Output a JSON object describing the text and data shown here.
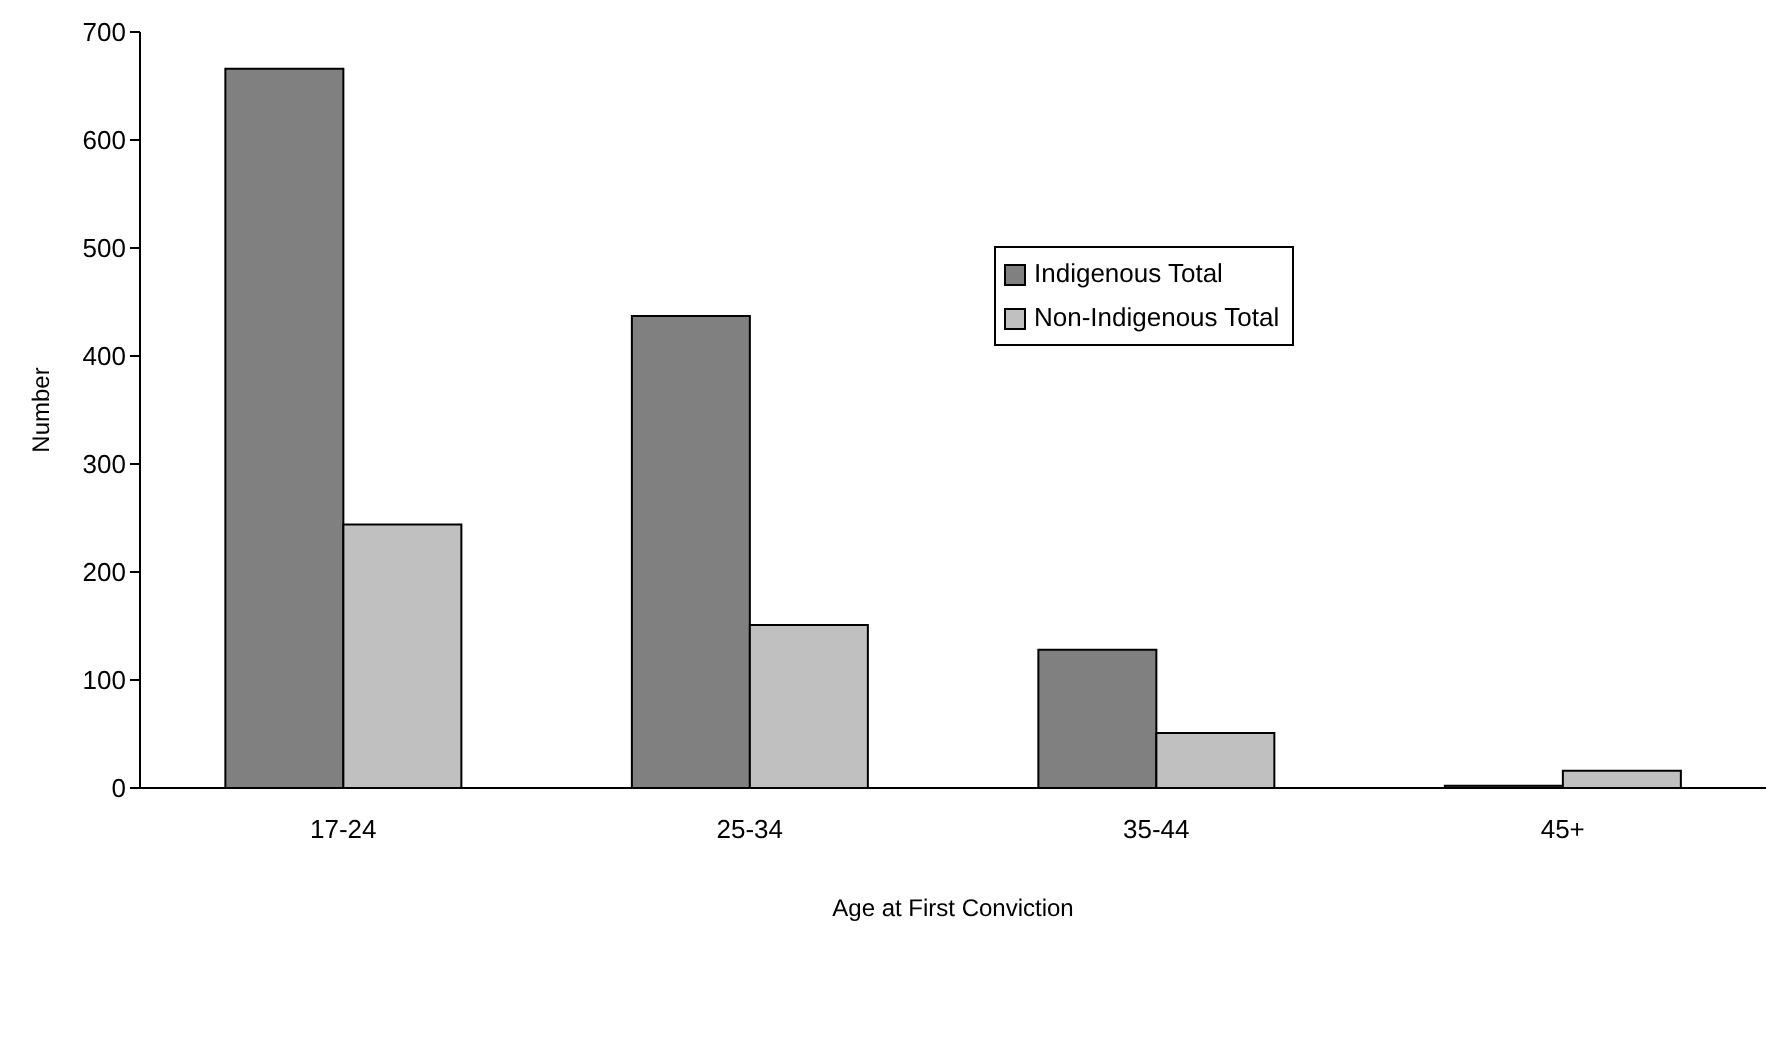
{
  "chart_data": {
    "type": "bar",
    "xlabel": "Age at First Conviction",
    "ylabel": "Number",
    "categories": [
      "17-24",
      "25-34",
      "35-44",
      "45+"
    ],
    "series": [
      {
        "name": "Indigenous Total",
        "color": "#808080",
        "values": [
          666,
          437,
          128,
          2
        ]
      },
      {
        "name": "Non-Indigenous Total",
        "color": "#c0c0c0",
        "values": [
          244,
          151,
          51,
          16
        ]
      }
    ],
    "ylim": [
      0,
      700
    ],
    "yticks": [
      0,
      100,
      200,
      300,
      400,
      500,
      600,
      700
    ],
    "grid": false,
    "legend": "top right"
  }
}
